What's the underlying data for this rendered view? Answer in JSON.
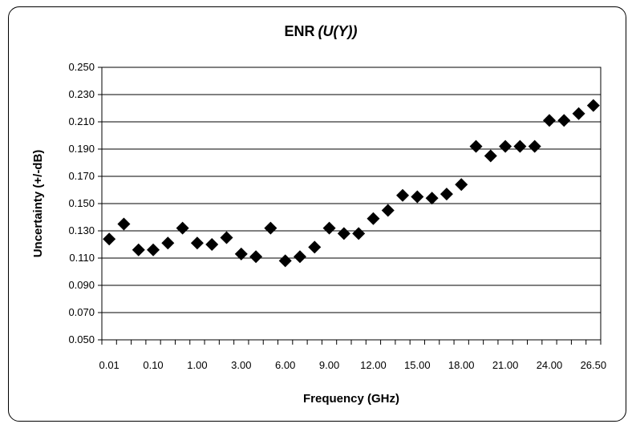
{
  "chart_data": {
    "type": "scatter",
    "title": "ENR",
    "title_suffix": "(U(Y))",
    "xlabel": "Frequency (GHz)",
    "ylabel": "Uncertainty (+/-dB)",
    "ylim": [
      0.05,
      0.25
    ],
    "y_ticks": [
      "0.050",
      "0.070",
      "0.090",
      "0.110",
      "0.130",
      "0.150",
      "0.170",
      "0.190",
      "0.210",
      "0.230",
      "0.250"
    ],
    "x_tick_labels": [
      "0.01",
      "0.10",
      "1.00",
      "3.00",
      "6.00",
      "9.00",
      "12.00",
      "15.00",
      "18.00",
      "21.00",
      "24.00",
      "26.50"
    ],
    "grid": "horizontal",
    "marker": "diamond",
    "marker_color": "#000000",
    "series": [
      {
        "values": [
          0.124,
          0.135,
          0.116,
          0.116,
          0.121,
          0.132,
          0.121,
          0.12,
          0.125,
          0.113,
          0.111,
          0.132,
          0.108,
          0.111,
          0.118,
          0.132,
          0.128,
          0.128,
          0.139,
          0.145,
          0.156,
          0.155,
          0.154,
          0.157,
          0.164,
          0.192,
          0.185,
          0.192,
          0.192,
          0.192,
          0.211,
          0.211,
          0.216,
          0.222
        ]
      }
    ]
  }
}
